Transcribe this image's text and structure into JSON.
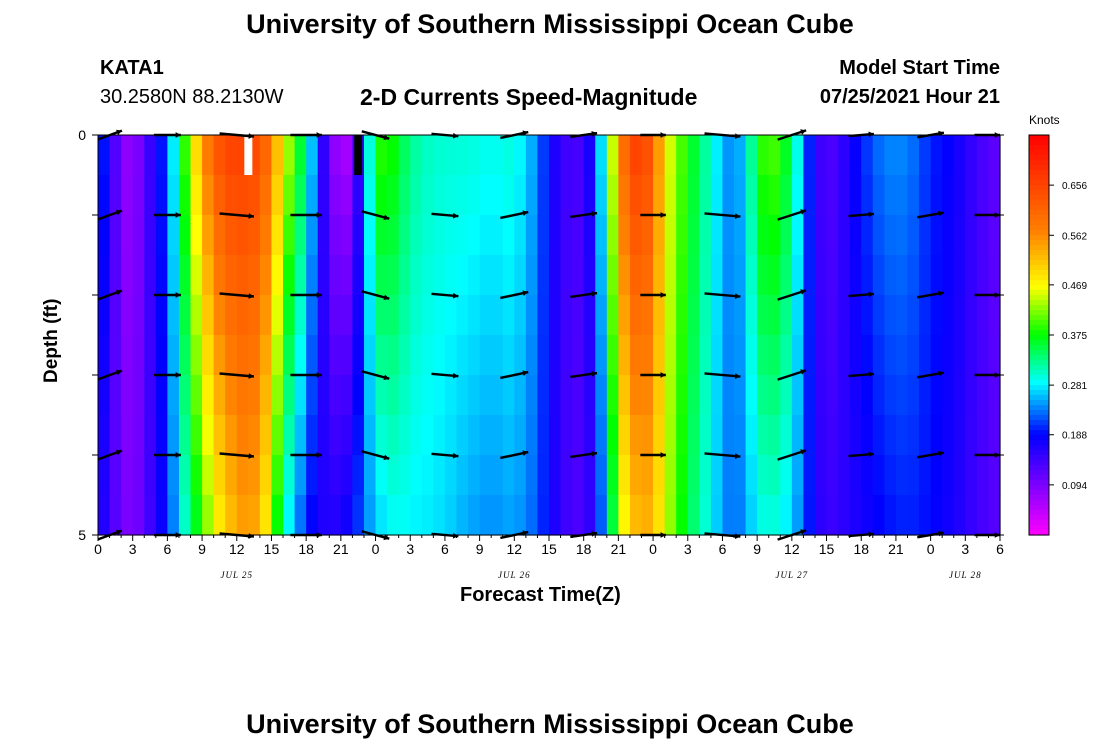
{
  "header": {
    "title": "University of Southern Mississippi Ocean Cube",
    "station_id": "KATA1",
    "station_coords": "30.2580N  88.2130W",
    "chart_title": "2-D Currents Speed-Magnitude",
    "model_start_label": "Model Start Time",
    "model_start_value": "07/25/2021 Hour 21"
  },
  "footer": {
    "title": "University of Southern Mississippi Ocean Cube"
  },
  "chart_data": {
    "type": "heatmap",
    "title": "2-D Currents Speed-Magnitude",
    "xlabel": "Forecast Time(Z)",
    "ylabel": "Depth (ft)",
    "xlim_hours": [
      0,
      78
    ],
    "ylim_depth_ft": [
      0,
      5
    ],
    "y_tick_labels": [
      "0",
      "5"
    ],
    "x_tick_hours": [
      0,
      3,
      6,
      9,
      12,
      15,
      18,
      21,
      24,
      27,
      30,
      33,
      36,
      39,
      42,
      45,
      48,
      51,
      54,
      57,
      60,
      63,
      66,
      69,
      72,
      75,
      78
    ],
    "x_tick_labels": [
      "0",
      "3",
      "6",
      "9",
      "12",
      "15",
      "18",
      "21",
      "0",
      "3",
      "6",
      "9",
      "12",
      "15",
      "18",
      "21",
      "0",
      "3",
      "6",
      "9",
      "12",
      "15",
      "18",
      "21",
      "0",
      "3",
      "6"
    ],
    "date_labels": [
      {
        "hour": 12,
        "text": "JUL 25"
      },
      {
        "hour": 36,
        "text": "JUL 26"
      },
      {
        "hour": 60,
        "text": "JUL 27"
      },
      {
        "hour": 75,
        "text": "JUL 28"
      }
    ],
    "colorbar": {
      "label": "Knots",
      "min": 0.0,
      "max": 0.75,
      "tick_values": [
        0.094,
        0.188,
        0.281,
        0.375,
        0.469,
        0.562,
        0.656
      ],
      "tick_labels": [
        "0.094",
        "0.188",
        "0.281",
        "0.375",
        "0.469",
        "0.562",
        "0.656"
      ]
    },
    "depth_rows_ft": [
      0.25,
      0.75,
      1.25,
      1.75,
      2.25,
      2.75,
      3.25,
      3.75,
      4.25,
      4.75
    ],
    "speed_profile": {
      "hours": [
        0,
        2,
        3,
        4,
        6,
        7,
        8,
        9,
        10,
        11,
        12,
        13,
        14,
        15,
        16,
        18,
        19,
        20,
        21,
        22,
        23,
        24,
        25,
        26,
        27,
        28,
        30,
        32,
        34,
        36,
        38,
        39,
        40,
        41,
        42,
        43,
        44,
        45,
        46,
        47,
        48,
        49,
        50,
        51,
        52,
        53,
        54,
        55,
        56,
        57,
        58,
        60,
        61,
        62,
        63,
        64,
        65,
        66,
        68,
        70,
        72,
        74,
        76,
        78
      ],
      "surface": [
        0.23,
        0.09,
        0.07,
        0.12,
        0.22,
        0.34,
        0.45,
        0.55,
        0.62,
        0.66,
        0.66,
        0.66,
        0.64,
        0.58,
        0.47,
        0.33,
        0.2,
        0.1,
        0.05,
        0.07,
        0.22,
        0.38,
        0.4,
        0.36,
        0.33,
        0.31,
        0.3,
        0.3,
        0.29,
        0.3,
        0.24,
        0.18,
        0.15,
        0.13,
        0.14,
        0.2,
        0.35,
        0.55,
        0.66,
        0.66,
        0.62,
        0.48,
        0.42,
        0.38,
        0.34,
        0.3,
        0.26,
        0.23,
        0.28,
        0.37,
        0.42,
        0.35,
        0.24,
        0.16,
        0.12,
        0.14,
        0.17,
        0.2,
        0.24,
        0.24,
        0.2,
        0.18,
        0.14,
        0.11
      ],
      "bottom": [
        0.18,
        0.1,
        0.09,
        0.12,
        0.2,
        0.27,
        0.33,
        0.39,
        0.45,
        0.5,
        0.53,
        0.55,
        0.52,
        0.44,
        0.3,
        0.2,
        0.17,
        0.16,
        0.17,
        0.19,
        0.23,
        0.26,
        0.28,
        0.29,
        0.28,
        0.28,
        0.27,
        0.25,
        0.24,
        0.25,
        0.22,
        0.18,
        0.15,
        0.13,
        0.13,
        0.17,
        0.27,
        0.43,
        0.5,
        0.53,
        0.52,
        0.45,
        0.4,
        0.35,
        0.32,
        0.28,
        0.25,
        0.22,
        0.25,
        0.28,
        0.3,
        0.27,
        0.22,
        0.17,
        0.14,
        0.15,
        0.16,
        0.17,
        0.19,
        0.2,
        0.19,
        0.17,
        0.14,
        0.12
      ]
    },
    "vector_hours": [
      0,
      6,
      12,
      18,
      24,
      30,
      36,
      42,
      48,
      54,
      60,
      66,
      72,
      78
    ],
    "vector_depths_ft": [
      0,
      1,
      2,
      3,
      4,
      5
    ],
    "vector_directions_deg": [
      -20,
      0,
      5,
      0,
      15,
      5,
      -12,
      -8,
      0,
      5,
      -18,
      -5,
      -10,
      0
    ],
    "vector_magnitudes": [
      0.25,
      0.3,
      0.55,
      0.45,
      0.35,
      0.3,
      0.35,
      0.3,
      0.25,
      0.6,
      0.4,
      0.25,
      0.3,
      0.25
    ],
    "markers": [
      {
        "hour": 13,
        "color": "#ffffff",
        "label": "white-marker"
      },
      {
        "hour": 22.5,
        "color": "#000000",
        "label": "black-marker"
      }
    ]
  }
}
